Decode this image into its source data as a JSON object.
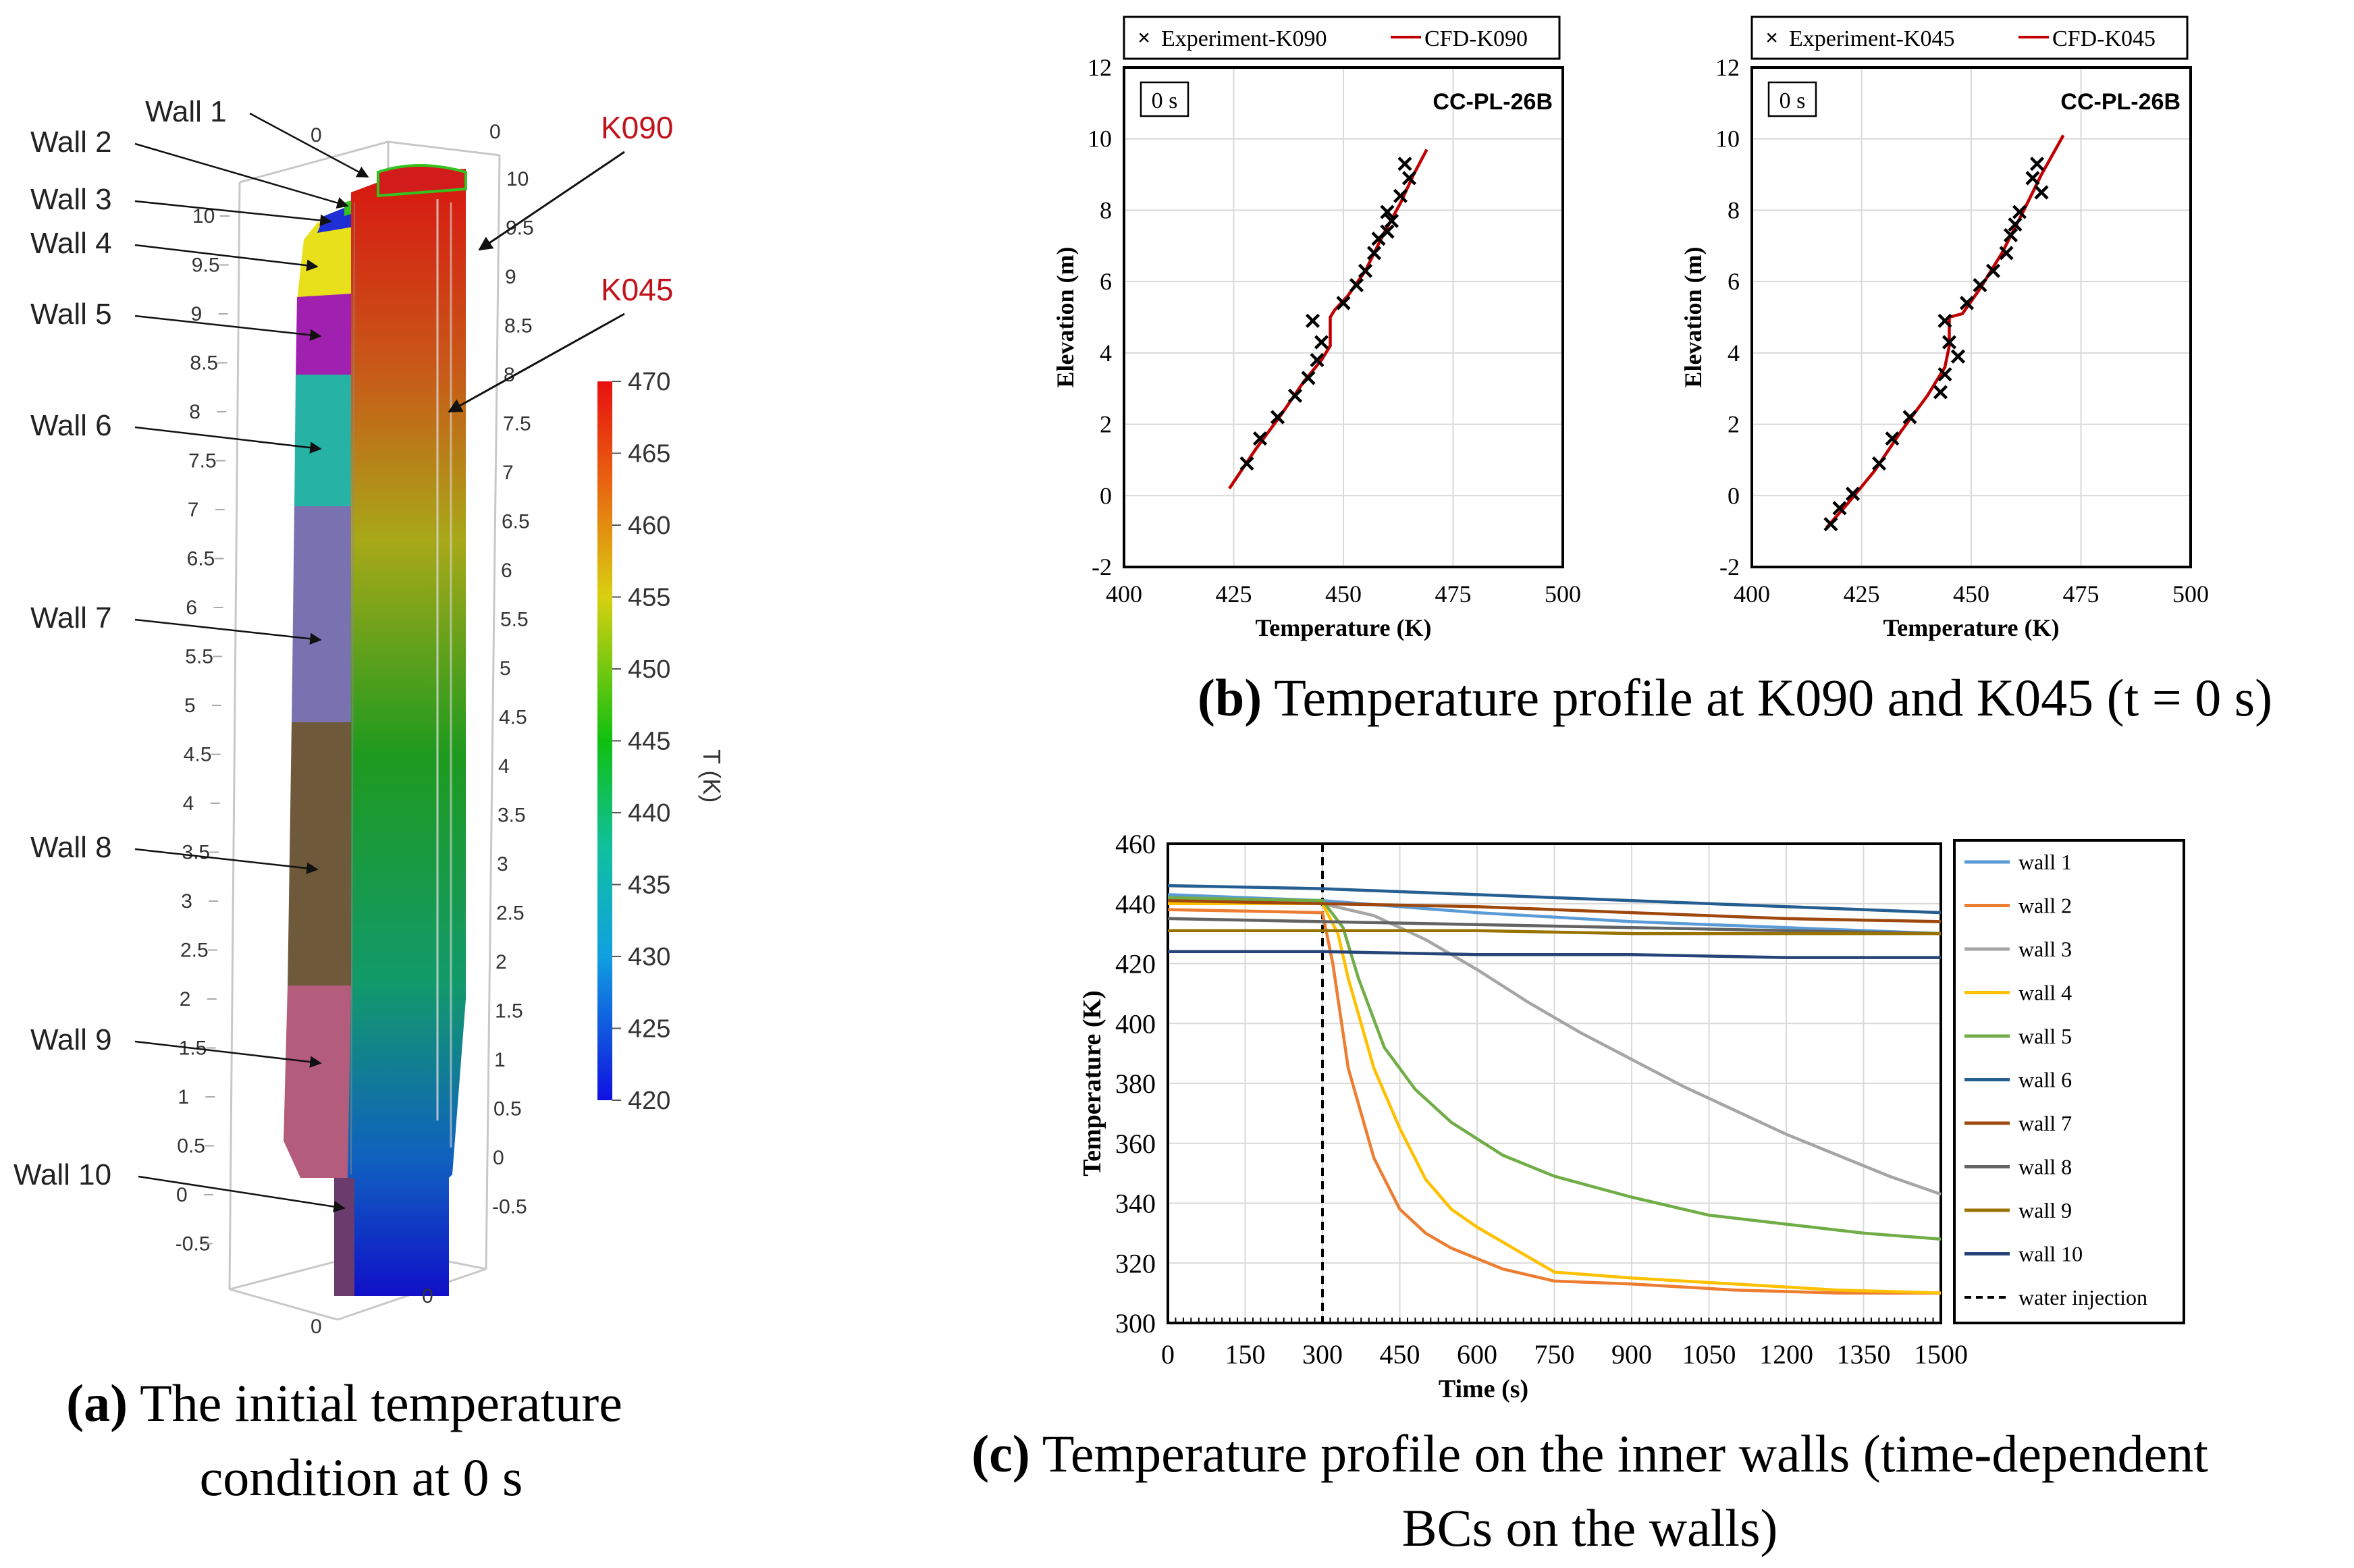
{
  "panel_a": {
    "caption_label": "(a)",
    "caption_line1": "The initial temperature",
    "caption_line2": "condition at 0 s",
    "wall_labels": [
      "Wall 1",
      "Wall 2",
      "Wall 3",
      "Wall 4",
      "Wall 5",
      "Wall 6",
      "Wall 7",
      "Wall 8",
      "Wall 9",
      "Wall 10"
    ],
    "probe_labels": [
      "K090",
      "K045"
    ],
    "probe_color": "#c0141c",
    "wall_colors": [
      "#d21c1c",
      "#33c41f",
      "#1f2fd6",
      "#e8e01a",
      "#a020b0",
      "#26b3a6",
      "#7a72b0",
      "#6e5a3a",
      "#b45c7c",
      "#6a3c6e"
    ],
    "left_axis_ticks": [
      "10",
      "9.5",
      "9",
      "8.5",
      "8",
      "7.5",
      "7",
      "6.5",
      "6",
      "5.5",
      "5",
      "4.5",
      "4",
      "3.5",
      "3",
      "2.5",
      "2",
      "1.5",
      "1",
      "0.5",
      "0",
      "-0.5"
    ],
    "right_axis_ticks": [
      "10",
      "9.5",
      "9",
      "8.5",
      "8",
      "7.5",
      "7",
      "6.5",
      "6",
      "5.5",
      "5",
      "4.5",
      "4",
      "3.5",
      "3",
      "2.5",
      "2",
      "1.5",
      "1",
      "0.5",
      "0",
      "-0.5"
    ],
    "box_zero_labels": [
      "0",
      "0",
      "0",
      "0"
    ],
    "colorbar": {
      "title": "T (K)",
      "ticks": [
        "470",
        "465",
        "460",
        "455",
        "450",
        "445",
        "440",
        "435",
        "430",
        "425",
        "420"
      ],
      "colors": [
        "#e8141c",
        "#e8541c",
        "#e89a1c",
        "#d6d61c",
        "#8ccc1c",
        "#1cb41c",
        "#1cb47a",
        "#1cb4c0",
        "#1c78d6",
        "#1c3ae0",
        "#1414e0"
      ]
    }
  },
  "panel_b": {
    "caption_label": "(b)",
    "caption_text": "Temperature profile at K090 and K045 (t = 0 s)"
  },
  "panel_c": {
    "caption_label": "(c)",
    "caption_line1": "Temperature profile on the inner walls (time-dependent",
    "caption_line2": "BCs on the walls)"
  },
  "chart_data": [
    {
      "type": "scatter",
      "title": "CC-PL-26B",
      "time_badge": "0 s",
      "xlabel": "Temperature  (K)",
      "ylabel": "Elevation  (m)",
      "xlim": [
        400,
        500
      ],
      "ylim": [
        -2,
        12
      ],
      "xticks": [
        "400",
        "425",
        "450",
        "475",
        "500"
      ],
      "yticks": [
        "-2",
        "0",
        "2",
        "4",
        "6",
        "8",
        "10",
        "12"
      ],
      "legend": [
        "Experiment-K090",
        "CFD-K090"
      ],
      "series": [
        {
          "name": "Experiment-K090",
          "style": "x-marker",
          "color": "#000000",
          "points": [
            [
              428,
              0.9
            ],
            [
              431,
              1.6
            ],
            [
              435,
              2.2
            ],
            [
              439,
              2.8
            ],
            [
              442,
              3.3
            ],
            [
              444,
              3.8
            ],
            [
              445,
              4.3
            ],
            [
              443,
              4.9
            ],
            [
              450,
              5.4
            ],
            [
              453,
              5.9
            ],
            [
              455,
              6.3
            ],
            [
              457,
              6.8
            ],
            [
              458,
              7.2
            ],
            [
              460,
              7.4
            ],
            [
              461,
              7.7
            ],
            [
              460,
              7.95
            ],
            [
              463,
              8.4
            ],
            [
              465,
              8.9
            ],
            [
              464,
              9.3
            ]
          ]
        },
        {
          "name": "CFD-K090",
          "style": "line",
          "color": "#c00000",
          "points": [
            [
              424,
              0.2
            ],
            [
              430,
              1.3
            ],
            [
              436,
              2.3
            ],
            [
              441,
              3.2
            ],
            [
              445,
              3.8
            ],
            [
              447,
              4.2
            ],
            [
              447,
              5.0
            ],
            [
              448,
              5.2
            ],
            [
              451,
              5.6
            ],
            [
              455,
              6.3
            ],
            [
              459,
              7.3
            ],
            [
              463,
              8.2
            ],
            [
              466,
              9.0
            ],
            [
              469,
              9.7
            ]
          ]
        }
      ]
    },
    {
      "type": "scatter",
      "title": "CC-PL-26B",
      "time_badge": "0 s",
      "xlabel": "Temperature  (K)",
      "ylabel": "Elevation  (m)",
      "xlim": [
        400,
        500
      ],
      "ylim": [
        -2,
        12
      ],
      "xticks": [
        "400",
        "425",
        "450",
        "475",
        "500"
      ],
      "yticks": [
        "-2",
        "0",
        "2",
        "4",
        "6",
        "8",
        "10",
        "12"
      ],
      "legend": [
        "Experiment-K045",
        "CFD-K045"
      ],
      "series": [
        {
          "name": "Experiment-K045",
          "style": "x-marker",
          "color": "#000000",
          "points": [
            [
              418,
              -0.8
            ],
            [
              420,
              -0.35
            ],
            [
              423,
              0.05
            ],
            [
              429,
              0.9
            ],
            [
              432,
              1.6
            ],
            [
              436,
              2.2
            ],
            [
              443,
              2.9
            ],
            [
              444,
              3.4
            ],
            [
              447,
              3.9
            ],
            [
              445,
              4.3
            ],
            [
              444,
              4.9
            ],
            [
              449,
              5.4
            ],
            [
              452,
              5.9
            ],
            [
              455,
              6.3
            ],
            [
              458,
              6.8
            ],
            [
              459,
              7.3
            ],
            [
              460,
              7.6
            ],
            [
              461,
              7.95
            ],
            [
              464,
              8.9
            ],
            [
              466,
              8.5
            ],
            [
              465,
              9.3
            ]
          ]
        },
        {
          "name": "CFD-K045",
          "style": "line",
          "color": "#c00000",
          "points": [
            [
              417,
              -0.9
            ],
            [
              422,
              -0.2
            ],
            [
              428,
              0.7
            ],
            [
              434,
              1.8
            ],
            [
              440,
              2.8
            ],
            [
              444,
              3.6
            ],
            [
              445,
              4.2
            ],
            [
              445,
              5.0
            ],
            [
              448,
              5.1
            ],
            [
              452,
              5.8
            ],
            [
              457,
              6.8
            ],
            [
              462,
              8.0
            ],
            [
              466,
              9.0
            ],
            [
              471,
              10.1
            ]
          ]
        }
      ]
    },
    {
      "type": "line",
      "xlabel": "Time  (s)",
      "ylabel": "Temperature  (K)",
      "xlim": [
        0,
        1500
      ],
      "ylim": [
        300,
        460
      ],
      "xticks": [
        "0",
        "150",
        "300",
        "450",
        "600",
        "750",
        "900",
        "1050",
        "1200",
        "1350",
        "1500"
      ],
      "yticks": [
        "300",
        "320",
        "340",
        "360",
        "380",
        "400",
        "420",
        "440",
        "460"
      ],
      "annotation": {
        "name": "water injection",
        "x": 300
      },
      "series": [
        {
          "name": "wall 1",
          "color": "#5b9bd5",
          "x": [
            0,
            300,
            600,
            900,
            1200,
            1500
          ],
          "values": [
            443,
            441,
            437,
            434,
            432,
            430
          ]
        },
        {
          "name": "wall 2",
          "color": "#ed7d31",
          "x": [
            0,
            300,
            320,
            350,
            400,
            450,
            500,
            550,
            650,
            750,
            900,
            1100,
            1300,
            1500
          ],
          "values": [
            438,
            437,
            420,
            385,
            355,
            338,
            330,
            325,
            318,
            314,
            313,
            311,
            310,
            310
          ]
        },
        {
          "name": "wall 3",
          "color": "#a5a5a5",
          "x": [
            0,
            300,
            400,
            500,
            600,
            700,
            800,
            900,
            1000,
            1100,
            1200,
            1300,
            1400,
            1500
          ],
          "values": [
            441,
            440,
            436,
            428,
            418,
            407,
            397,
            388,
            379,
            371,
            363,
            356,
            349,
            343
          ]
        },
        {
          "name": "wall 4",
          "color": "#ffc000",
          "x": [
            0,
            300,
            330,
            350,
            400,
            450,
            500,
            550,
            600,
            700,
            750,
            900,
            1100,
            1300,
            1500
          ],
          "values": [
            440,
            440,
            430,
            415,
            385,
            365,
            348,
            338,
            332,
            322,
            317,
            315,
            313,
            311,
            310
          ]
        },
        {
          "name": "wall 5",
          "color": "#70ad47",
          "x": [
            0,
            300,
            340,
            370,
            420,
            480,
            550,
            650,
            750,
            900,
            1050,
            1200,
            1350,
            1500
          ],
          "values": [
            442,
            441,
            432,
            415,
            392,
            378,
            367,
            356,
            349,
            342,
            336,
            333,
            330,
            328
          ]
        },
        {
          "name": "wall 6",
          "color": "#255e91",
          "x": [
            0,
            300,
            600,
            900,
            1200,
            1500
          ],
          "values": [
            446,
            445,
            443,
            441,
            439,
            437
          ]
        },
        {
          "name": "wall 7",
          "color": "#9e480e",
          "x": [
            0,
            300,
            600,
            900,
            1200,
            1500
          ],
          "values": [
            441,
            440,
            439,
            437,
            435,
            434
          ]
        },
        {
          "name": "wall 8",
          "color": "#636363",
          "x": [
            0,
            300,
            600,
            900,
            1200,
            1500
          ],
          "values": [
            435,
            434,
            433,
            432,
            431,
            430
          ]
        },
        {
          "name": "wall 9",
          "color": "#997300",
          "x": [
            0,
            300,
            600,
            900,
            1200,
            1500
          ],
          "values": [
            431,
            431,
            431,
            430,
            430,
            430
          ]
        },
        {
          "name": "wall 10",
          "color": "#264478",
          "x": [
            0,
            300,
            600,
            900,
            1200,
            1500
          ],
          "values": [
            424,
            424,
            423,
            423,
            422,
            422
          ]
        }
      ],
      "legend_extra": "water injection"
    }
  ]
}
